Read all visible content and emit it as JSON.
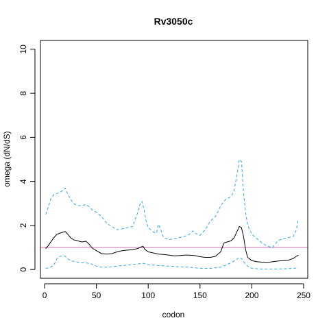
{
  "chart_data": {
    "type": "line",
    "title": "Rv3050c",
    "xlabel": "codon",
    "ylabel": "omega (dN/dS)",
    "xlim": [
      -4,
      254
    ],
    "ylim": [
      -0.4,
      10.4
    ],
    "xticks": [
      0,
      50,
      100,
      150,
      200,
      250
    ],
    "yticks": [
      0,
      2,
      4,
      6,
      8,
      10
    ],
    "grid": false,
    "legend": "none",
    "reference_line": {
      "y": 1,
      "color": "#CC6EB4"
    },
    "series": [
      {
        "role": "estimate",
        "color": "#000000",
        "style": "solid",
        "x": [
          1,
          3,
          6,
          9,
          12,
          15,
          18,
          20,
          22,
          25,
          28,
          32,
          36,
          40,
          43,
          46,
          50,
          55,
          60,
          65,
          70,
          75,
          80,
          85,
          90,
          93,
          95,
          97,
          100,
          105,
          110,
          115,
          120,
          125,
          130,
          135,
          140,
          145,
          150,
          155,
          160,
          165,
          170,
          173,
          176,
          180,
          183,
          186,
          188,
          190,
          192,
          194,
          196,
          200,
          205,
          210,
          215,
          220,
          225,
          230,
          235,
          240,
          243,
          245
        ],
        "y": [
          0.95,
          1.05,
          1.25,
          1.45,
          1.6,
          1.65,
          1.7,
          1.72,
          1.62,
          1.45,
          1.35,
          1.3,
          1.25,
          1.28,
          1.15,
          0.97,
          0.85,
          0.72,
          0.7,
          0.72,
          0.8,
          0.85,
          0.88,
          0.9,
          0.95,
          1.02,
          1.05,
          0.9,
          0.8,
          0.75,
          0.7,
          0.68,
          0.65,
          0.62,
          0.63,
          0.65,
          0.65,
          0.63,
          0.58,
          0.55,
          0.55,
          0.6,
          0.8,
          1.2,
          1.25,
          1.3,
          1.45,
          1.75,
          1.95,
          1.9,
          1.5,
          0.9,
          0.55,
          0.4,
          0.35,
          0.33,
          0.32,
          0.35,
          0.38,
          0.4,
          0.42,
          0.5,
          0.6,
          0.65
        ]
      },
      {
        "role": "upper",
        "color": "#2DA7E6",
        "style": "dashed",
        "x": [
          1,
          3,
          6,
          9,
          12,
          15,
          18,
          20,
          22,
          25,
          28,
          32,
          36,
          40,
          43,
          46,
          50,
          55,
          60,
          65,
          70,
          75,
          80,
          85,
          90,
          92,
          94,
          96,
          98,
          100,
          105,
          108,
          110,
          115,
          120,
          125,
          130,
          135,
          140,
          143,
          145,
          150,
          155,
          160,
          165,
          170,
          175,
          180,
          183,
          186,
          188,
          190,
          192,
          194,
          196,
          200,
          205,
          210,
          215,
          220,
          225,
          230,
          235,
          240,
          243,
          245
        ],
        "y": [
          2.5,
          2.75,
          3.2,
          3.4,
          3.45,
          3.5,
          3.6,
          3.7,
          3.45,
          3.2,
          3.0,
          2.9,
          2.9,
          2.95,
          2.85,
          2.7,
          2.6,
          2.4,
          2.1,
          1.95,
          1.8,
          1.85,
          1.9,
          1.95,
          2.6,
          2.95,
          3.1,
          2.7,
          2.2,
          1.9,
          1.7,
          1.65,
          2.05,
          1.45,
          1.35,
          1.4,
          1.45,
          1.5,
          1.6,
          1.75,
          1.65,
          1.55,
          1.8,
          2.2,
          2.4,
          2.9,
          3.2,
          3.3,
          3.6,
          4.4,
          5.0,
          4.9,
          3.5,
          2.6,
          2.0,
          1.6,
          1.4,
          1.2,
          1.05,
          1.0,
          1.3,
          1.4,
          1.45,
          1.5,
          1.8,
          2.3
        ]
      },
      {
        "role": "lower",
        "color": "#2DA7E6",
        "style": "dashed",
        "x": [
          1,
          5,
          9,
          12,
          15,
          18,
          20,
          22,
          25,
          30,
          35,
          40,
          45,
          50,
          55,
          60,
          70,
          80,
          90,
          95,
          100,
          110,
          120,
          130,
          140,
          145,
          150,
          160,
          170,
          175,
          180,
          185,
          188,
          190,
          193,
          196,
          200,
          210,
          220,
          230,
          240,
          245
        ],
        "y": [
          0.05,
          0.08,
          0.2,
          0.5,
          0.6,
          0.62,
          0.6,
          0.5,
          0.4,
          0.35,
          0.3,
          0.3,
          0.25,
          0.15,
          0.1,
          0.1,
          0.15,
          0.2,
          0.25,
          0.28,
          0.22,
          0.18,
          0.15,
          0.12,
          0.1,
          0.08,
          0.05,
          0.05,
          0.1,
          0.2,
          0.3,
          0.45,
          0.55,
          0.5,
          0.3,
          0.15,
          0.05,
          0.02,
          0.02,
          0.03,
          0.05,
          0.08
        ]
      }
    ]
  }
}
